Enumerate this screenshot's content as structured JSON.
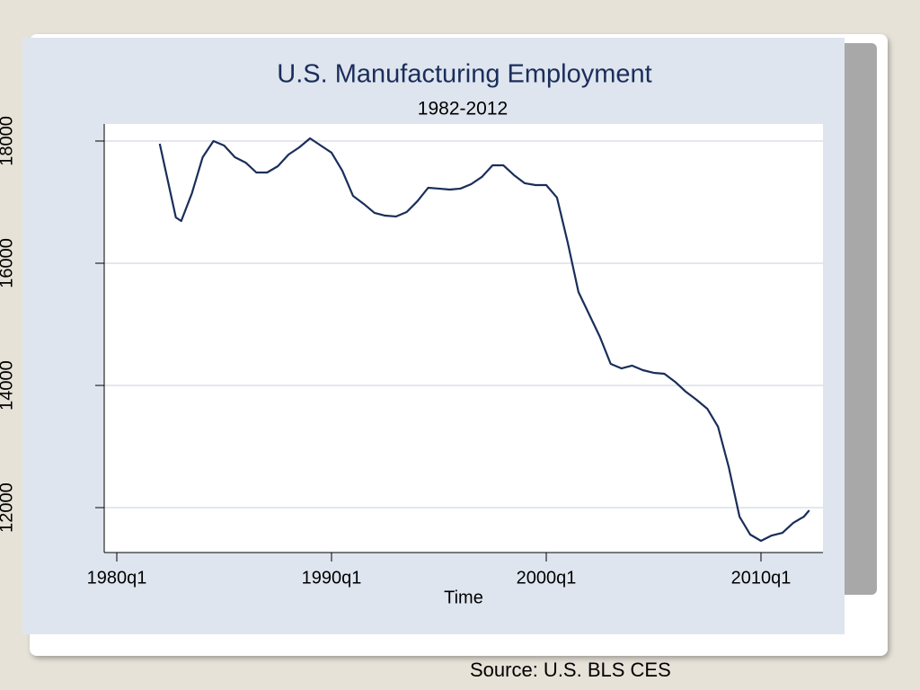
{
  "chart_data": {
    "type": "line",
    "title": "U.S. Manufacturing Employment",
    "subtitle": "1982-2012",
    "x_label": "Time",
    "x": [
      1982.0,
      1982.75,
      1983.0,
      1983.5,
      1984.0,
      1984.5,
      1985.0,
      1985.5,
      1986.0,
      1986.5,
      1987.0,
      1987.5,
      1988.0,
      1988.5,
      1989.0,
      1989.5,
      1990.0,
      1990.5,
      1991.0,
      1991.5,
      1992.0,
      1992.5,
      1993.0,
      1993.5,
      1994.0,
      1994.5,
      1995.0,
      1995.5,
      1996.0,
      1996.5,
      1997.0,
      1997.5,
      1998.0,
      1998.5,
      1999.0,
      1999.5,
      2000.0,
      2000.5,
      2001.0,
      2001.5,
      2002.0,
      2002.5,
      2003.0,
      2003.5,
      2004.0,
      2004.5,
      2005.0,
      2005.5,
      2006.0,
      2006.5,
      2007.0,
      2007.5,
      2008.0,
      2008.5,
      2009.0,
      2009.5,
      2010.0,
      2010.5,
      2011.0,
      2011.5,
      2012.0,
      2012.25
    ],
    "series": [
      {
        "name": "Manufacturing employment",
        "color": "#1a2e5a",
        "values": [
          17956,
          16750,
          16691,
          17147,
          17735,
          18000,
          17926,
          17735,
          17647,
          17485,
          17485,
          17588,
          17779,
          17897,
          18044,
          17926,
          17809,
          17515,
          17103,
          16971,
          16824,
          16779,
          16765,
          16838,
          17015,
          17235,
          17221,
          17206,
          17221,
          17294,
          17412,
          17603,
          17603,
          17441,
          17309,
          17279,
          17279,
          17074,
          16338,
          15529,
          15162,
          14794,
          14353,
          14279,
          14324,
          14250,
          14206,
          14191,
          14059,
          13897,
          13765,
          13618,
          13324,
          12662,
          11853,
          11559,
          11456,
          11544,
          11588,
          11750,
          11853,
          11956
        ]
      }
    ],
    "xlim": [
      1979.414,
      2012.887
    ],
    "xticks": [
      {
        "value": 1980,
        "label": "1980q1"
      },
      {
        "value": 1990,
        "label": "1990q1"
      },
      {
        "value": 2000,
        "label": "2000q1"
      },
      {
        "value": 2010,
        "label": "2010q1"
      }
    ],
    "ylim": [
      11265,
      18279
    ],
    "yticks": [
      12000,
      14000,
      16000,
      18000
    ],
    "grid": true
  },
  "footer": {
    "source": "Source: U.S. BLS CES"
  }
}
